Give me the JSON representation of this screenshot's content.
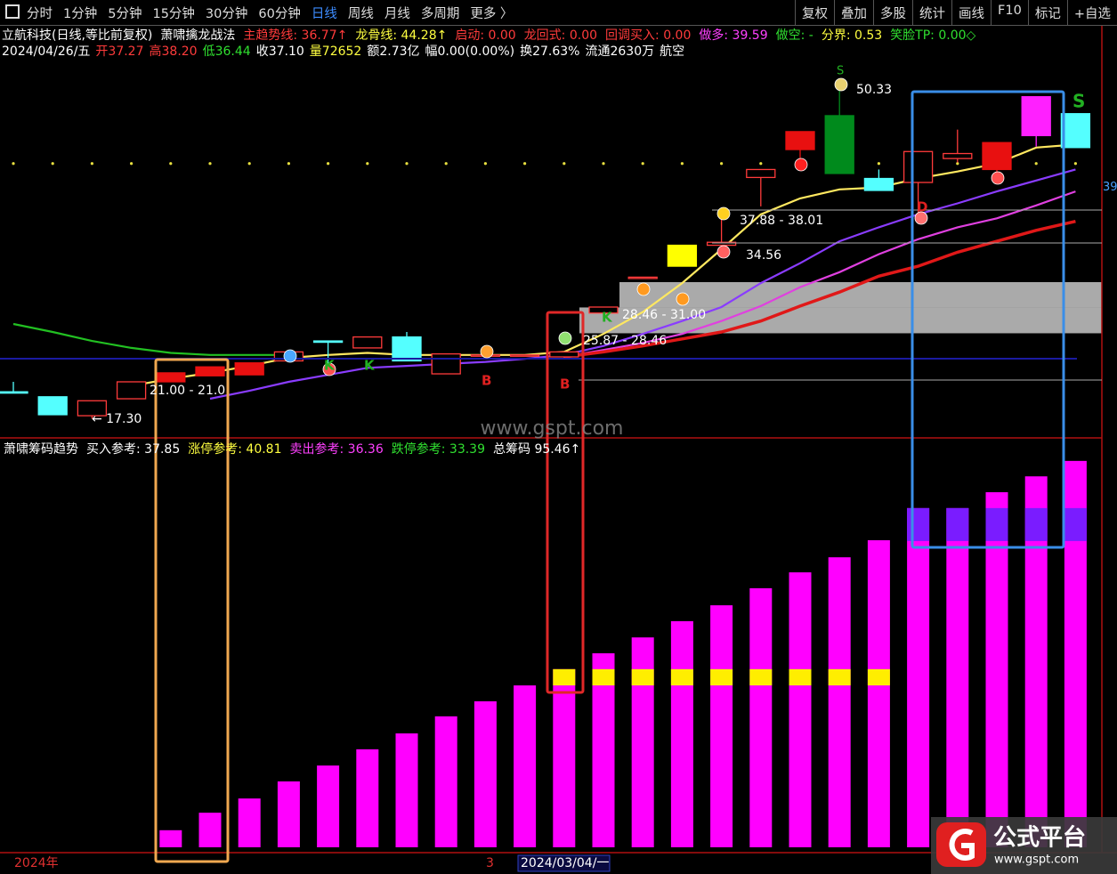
{
  "toolbar": {
    "left": [
      "分时",
      "1分钟",
      "5分钟",
      "15分钟",
      "30分钟",
      "60分钟",
      "日线",
      "周线",
      "月线",
      "多周期",
      "更多 〉"
    ],
    "right": [
      "复权",
      "叠加",
      "多股",
      "统计",
      "画线",
      "F10",
      "标记",
      "+自选"
    ]
  },
  "info_line1": [
    {
      "text": "立航科技(日线,等比前复权)",
      "color": "#ffffff"
    },
    {
      "text": "萧啸擒龙战法",
      "color": "#ffffff"
    },
    {
      "text": "主趋势线: 36.77↑",
      "color": "#ff3b3b"
    },
    {
      "text": "龙骨线: 44.28↑",
      "color": "#ffff40"
    },
    {
      "text": "启动: 0.00",
      "color": "#ff3b3b"
    },
    {
      "text": "龙回式: 0.00",
      "color": "#ff3b3b"
    },
    {
      "text": "回调买入: 0.00",
      "color": "#ff3b3b"
    },
    {
      "text": "做多: 39.59",
      "color": "#ff40ff"
    },
    {
      "text": "做空: -",
      "color": "#30e030"
    },
    {
      "text": "分界: 0.53",
      "color": "#ffff40"
    },
    {
      "text": "笑脸TP: 0.00◇",
      "color": "#30e030"
    }
  ],
  "info_line2": [
    {
      "text": "2024/04/26/五",
      "color": "#ffffff"
    },
    {
      "text": "开37.27",
      "color": "#ff3b3b"
    },
    {
      "text": "高38.20",
      "color": "#ff3b3b"
    },
    {
      "text": "低36.44",
      "color": "#30e030"
    },
    {
      "text": "收37.10",
      "color": "#ffffff"
    },
    {
      "text": "量72652",
      "color": "#ffff40"
    },
    {
      "text": "额2.73亿",
      "color": "#ffffff"
    },
    {
      "text": "幅0.00(0.00%)",
      "color": "#ffffff"
    },
    {
      "text": "换27.63%",
      "color": "#ffffff"
    },
    {
      "text": "流通2630万",
      "color": "#ffffff"
    },
    {
      "text": "航空",
      "color": "#ffffff"
    }
  ],
  "lower_header": [
    {
      "text": "萧啸筹码趋势",
      "color": "#ffffff"
    },
    {
      "text": "买入参考: 37.85",
      "color": "#ffffff"
    },
    {
      "text": "涨停参考: 40.81",
      "color": "#ffff40"
    },
    {
      "text": "卖出参考: 36.36",
      "color": "#ff40ff"
    },
    {
      "text": "跌停参考: 33.39",
      "color": "#30e030"
    },
    {
      "text": "总筹码 95.46↑",
      "color": "#ffffff"
    }
  ],
  "chart_data": [
    {
      "type": "candlestick",
      "open": [
        20.0,
        19.5,
        17.6,
        19.3,
        21.0,
        21.6,
        21.7,
        23.1,
        25.1,
        24.4,
        25.5,
        21.8,
        23.7,
        23.7,
        23.5,
        27.9,
        31.5,
        32.6,
        34.7,
        41.5,
        44.3,
        47.7,
        41.4,
        41.0,
        43.4,
        42.3,
        45.7,
        47.9
      ],
      "high": [
        21.0,
        19.5,
        19.1,
        21.0,
        21.9,
        22.5,
        22.9,
        24.0,
        25.1,
        25.5,
        26.0,
        23.8,
        23.7,
        23.7,
        24.0,
        28.5,
        31.5,
        34.7,
        38.0,
        42.3,
        46.1,
        50.33,
        42.3,
        44.1,
        46.3,
        45.0,
        49.6,
        47.9
      ],
      "low": [
        19.9,
        17.7,
        17.3,
        19.3,
        21.0,
        21.6,
        21.7,
        23.1,
        22.6,
        24.4,
        23.1,
        21.8,
        23.7,
        23.7,
        23.3,
        27.9,
        31.5,
        32.6,
        34.5,
        38.6,
        42.5,
        41.9,
        40.2,
        38.0,
        43.0,
        41.0,
        44.6,
        44.5
      ],
      "close": [
        20.0,
        17.7,
        19.1,
        21.0,
        21.9,
        22.5,
        22.9,
        24.0,
        25.1,
        25.5,
        23.1,
        23.8,
        23.7,
        23.7,
        24.0,
        28.5,
        31.5,
        34.7,
        35.0,
        42.3,
        46.1,
        41.9,
        40.2,
        44.1,
        43.9,
        45.0,
        49.6,
        44.5
      ],
      "colors": [
        "#54ffff",
        "#54ffff",
        "#ff3b3b",
        "#ff3b3b",
        "#e81010",
        "#e81010",
        "#e81010",
        "#ff3b3b",
        "#54ffff",
        "#ff3b3b",
        "#54ffff",
        "#ff3b3b",
        "#ff3b3b",
        "#ff3b3b",
        "#ff3b3b",
        "#ff3b3b",
        "#ff3b3b",
        "#ffff00",
        "#ff3b3b",
        "#ff3b3b",
        "#e81010",
        "#008a1c",
        "#54ffff",
        "#ff3b3b",
        "#ff3b3b",
        "#e81010",
        "#ff20ff",
        "#54ffff"
      ],
      "hollow_color": "#ff3b3b",
      "series": [
        {
          "color": "#ffe860",
          "values": [
            null,
            null,
            null,
            20.6,
            21.3,
            21.9,
            22.6,
            23.4,
            23.7,
            23.9,
            23.7,
            23.7,
            23.7,
            23.7,
            24.0,
            25.8,
            28.0,
            30.9,
            34.3,
            37.8,
            39.4,
            40.3,
            40.5,
            41.4,
            42.1,
            42.9,
            44.5,
            44.8
          ]
        },
        {
          "color": "#8a3cff",
          "values": [
            null,
            null,
            null,
            null,
            null,
            19.3,
            20.1,
            21.0,
            21.7,
            22.4,
            22.6,
            22.8,
            23.0,
            23.3,
            23.7,
            24.6,
            25.8,
            27.1,
            28.5,
            30.9,
            32.9,
            35.1,
            36.5,
            37.8,
            38.9,
            40.1,
            41.2,
            42.3
          ]
        },
        {
          "color": "#e040e0",
          "values": [
            null,
            null,
            null,
            null,
            null,
            null,
            null,
            null,
            null,
            null,
            null,
            null,
            null,
            null,
            23.5,
            24.2,
            24.9,
            25.8,
            27.1,
            28.6,
            30.5,
            32.0,
            33.8,
            35.3,
            36.5,
            37.4,
            38.7,
            40.1
          ]
        },
        {
          "color": "#e01818",
          "values": [
            null,
            null,
            null,
            null,
            null,
            null,
            null,
            null,
            null,
            null,
            null,
            null,
            null,
            null,
            23.5,
            24.0,
            24.6,
            25.3,
            26.0,
            27.1,
            28.6,
            30.0,
            31.6,
            32.6,
            34.0,
            35.1,
            36.2,
            37.1
          ]
        },
        {
          "color": "#22c022",
          "values": [
            26.8,
            26.0,
            25.1,
            24.4,
            23.9,
            23.7,
            23.7,
            23.7,
            null,
            null,
            null,
            null,
            null,
            null,
            null,
            null,
            null,
            null,
            null,
            null,
            null,
            null,
            null,
            null,
            null,
            null,
            null,
            null
          ]
        }
      ],
      "dot_level": 42.9,
      "zones": [
        {
          "low": 28.46,
          "high": 31.0
        },
        {
          "low": 25.87,
          "high": 28.46
        }
      ],
      "ylim": [
        15.5,
        53.5
      ],
      "yticks": [
        39
      ]
    },
    {
      "type": "bar",
      "color": "#ff00ff",
      "values": [
        null,
        null,
        null,
        null,
        4.2,
        8.5,
        12.0,
        16.2,
        20.1,
        24.1,
        28.0,
        32.2,
        35.9,
        39.8,
        43.8,
        47.7,
        51.6,
        55.6,
        59.5,
        63.7,
        67.6,
        71.3,
        75.5,
        83.4,
        83.4,
        87.3,
        91.2,
        95.0
      ],
      "bands": [
        {
          "color": "#ffee00",
          "low": [
            null,
            null,
            null,
            null,
            null,
            null,
            null,
            null,
            null,
            null,
            null,
            null,
            null,
            null,
            39.8,
            39.8,
            39.8,
            39.8,
            39.8,
            39.8,
            39.8,
            39.8,
            39.8,
            null,
            null,
            null,
            null,
            null
          ],
          "high": [
            null,
            null,
            null,
            null,
            null,
            null,
            null,
            null,
            null,
            null,
            null,
            null,
            null,
            null,
            43.8,
            43.8,
            43.8,
            43.8,
            43.8,
            43.8,
            43.8,
            43.8,
            43.8,
            null,
            null,
            null,
            null,
            null
          ]
        },
        {
          "color": "#7a1cff",
          "low": [
            null,
            null,
            null,
            null,
            null,
            null,
            null,
            null,
            null,
            null,
            null,
            null,
            null,
            null,
            null,
            null,
            null,
            null,
            null,
            null,
            null,
            null,
            null,
            75.3,
            75.3,
            75.3,
            75.3,
            75.3
          ],
          "high": [
            null,
            null,
            null,
            null,
            null,
            null,
            null,
            null,
            null,
            null,
            null,
            null,
            null,
            null,
            null,
            null,
            null,
            null,
            null,
            null,
            null,
            null,
            null,
            83.4,
            83.4,
            83.4,
            83.4,
            83.4
          ]
        }
      ],
      "ylim": [
        0,
        100
      ]
    }
  ],
  "annotations": [
    "50.33",
    "37.88 - 38.01",
    "34.56",
    "28.46 - 31.00",
    "25.87 - 28.46",
    "21.00 - 21.0",
    "← 17.30",
    "K",
    "K",
    "K",
    "B",
    "B",
    "S",
    "S",
    "D"
  ],
  "axis_labels": [
    "2024年",
    "3",
    "2024/03/04/一"
  ],
  "watermark": "www.gspt.com",
  "logo": {
    "name": "公式平台",
    "url": "www.gspt.com"
  }
}
